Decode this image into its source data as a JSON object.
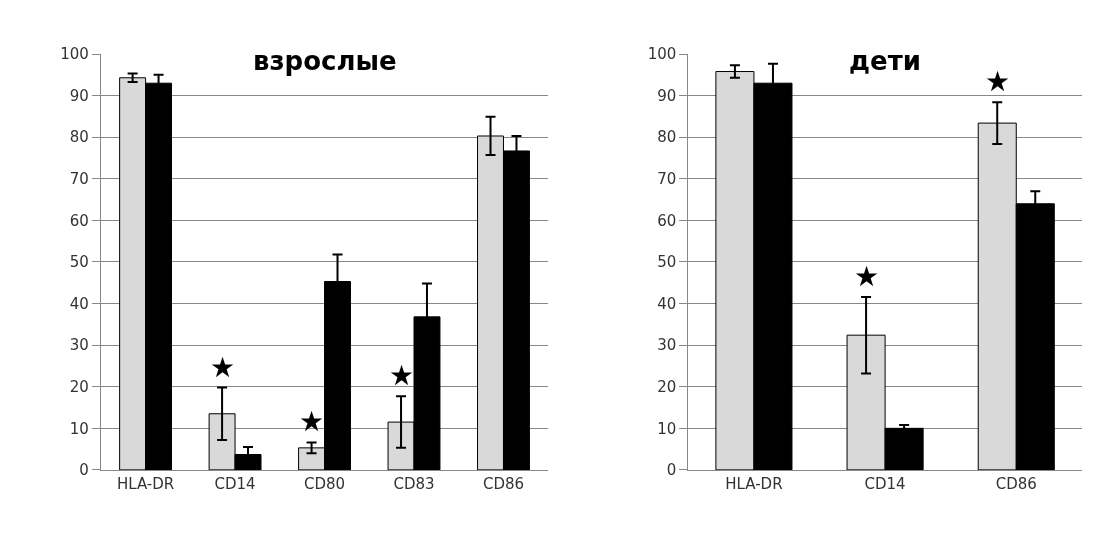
{
  "chart_data": [
    {
      "type": "bar",
      "title": "взрослые",
      "categories": [
        "HLA-DR",
        "CD14",
        "CD80",
        "CD83",
        "CD86"
      ],
      "ylim": [
        0,
        100
      ],
      "yticks": [
        0,
        10,
        20,
        30,
        40,
        50,
        60,
        70,
        80,
        90,
        100
      ],
      "grid": "y",
      "series": [
        {
          "color": "#d9d9d9",
          "values": [
            94.3,
            13.5,
            5.3,
            11.5,
            80.3
          ],
          "errors": [
            1,
            6.3,
            1.3,
            6.2,
            4.6
          ],
          "value_labels": [
            null,
            "★",
            "★",
            "★",
            null
          ]
        },
        {
          "color": "#000000",
          "values": [
            93,
            3.7,
            45.3,
            36.8,
            76.7
          ],
          "errors": [
            2,
            1.8,
            6.5,
            8,
            3.6
          ]
        }
      ]
    },
    {
      "type": "bar",
      "title": "дети",
      "categories": [
        "HLA-DR",
        "CD14",
        "CD86"
      ],
      "ylim": [
        0,
        100
      ],
      "yticks": [
        0,
        10,
        20,
        30,
        40,
        50,
        60,
        70,
        80,
        90,
        100
      ],
      "grid": "y",
      "series": [
        {
          "color": "#d9d9d9",
          "values": [
            95.8,
            32.4,
            83.4
          ],
          "errors": [
            1.5,
            9.2,
            5
          ],
          "value_labels": [
            null,
            "★",
            "★"
          ]
        },
        {
          "color": "#000000",
          "values": [
            93,
            10,
            64
          ],
          "errors": [
            4.7,
            0.8,
            3
          ]
        }
      ]
    }
  ]
}
